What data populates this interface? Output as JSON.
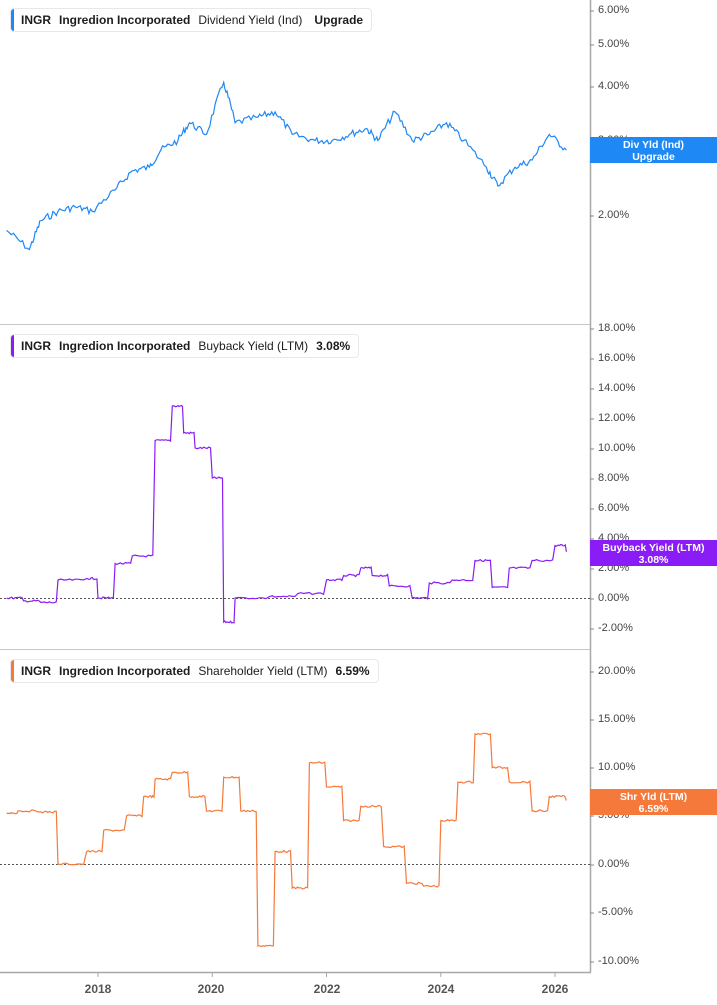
{
  "ticker": "INGR",
  "company": "Ingredion Incorporated",
  "panels": [
    {
      "metric": "Dividend Yield (Ind)",
      "value": "Upgrade",
      "color": "#1e88f5",
      "tag_line1": "Div Yld (Ind)",
      "tag_line2": "Upgrade",
      "ticks": [
        "6.00%",
        "5.00%",
        "4.00%",
        "3.00%",
        "2.00%"
      ]
    },
    {
      "metric": "Buyback Yield (LTM)",
      "value": "3.08%",
      "color": "#8a1cf5",
      "tag_line1": "Buyback Yield (LTM)",
      "tag_line2": "3.08%",
      "ticks": [
        "18.00%",
        "16.00%",
        "14.00%",
        "12.00%",
        "10.00%",
        "8.00%",
        "6.00%",
        "4.00%",
        "2.00%",
        "0.00%",
        "-2.00%"
      ]
    },
    {
      "metric": "Shareholder Yield (LTM)",
      "value": "6.59%",
      "color": "#f5793b",
      "tag_line1": "Shr Yld (LTM)",
      "tag_line2": "6.59%",
      "ticks": [
        "20.00%",
        "15.00%",
        "10.00%",
        "5.00%",
        "0.00%",
        "-5.00%",
        "-10.00%"
      ]
    }
  ],
  "x_axis": [
    "2018",
    "2020",
    "2022",
    "2024",
    "2026"
  ],
  "chart_data": [
    {
      "type": "line",
      "title": "INGR Ingredion Incorporated Dividend Yield (Ind)",
      "ylabel": "Dividend Yield (Ind)",
      "yscale": "log",
      "ylim": [
        1.5,
        6.3
      ],
      "y_ticks": [
        "2.00%",
        "3.00%",
        "4.00%",
        "5.00%",
        "6.00%"
      ],
      "x": [
        2016.4,
        2016.8,
        2017.0,
        2017.3,
        2017.6,
        2017.9,
        2018.3,
        2018.6,
        2018.9,
        2019.1,
        2019.4,
        2019.6,
        2019.9,
        2020.2,
        2020.4,
        2020.8,
        2021.1,
        2021.4,
        2021.8,
        2022.1,
        2022.4,
        2022.7,
        2022.9,
        2023.2,
        2023.5,
        2023.8,
        2024.1,
        2024.4,
        2024.8,
        2025.0,
        2025.3,
        2025.6,
        2025.9,
        2026.2
      ],
      "values": [
        1.85,
        1.67,
        1.95,
        2.05,
        2.1,
        2.05,
        2.3,
        2.55,
        2.6,
        2.85,
        3.0,
        3.3,
        3.1,
        4.1,
        3.3,
        3.4,
        3.5,
        3.1,
        3.0,
        3.0,
        3.1,
        3.2,
        3.0,
        3.5,
        3.0,
        3.1,
        3.3,
        3.0,
        2.6,
        2.35,
        2.6,
        2.7,
        3.1,
        2.85
      ]
    },
    {
      "type": "line",
      "title": "INGR Ingredion Incorporated Buyback Yield (LTM)",
      "ylabel": "Buyback Yield (LTM)",
      "ylim": [
        -2.5,
        18
      ],
      "y_ticks": [
        "-2.00%",
        "0.00%",
        "2.00%",
        "4.00%",
        "6.00%",
        "8.00%",
        "10.00%",
        "12.00%",
        "14.00%",
        "16.00%",
        "18.00%"
      ],
      "x": [
        2016.4,
        2016.7,
        2017.0,
        2017.3,
        2017.8,
        2018.0,
        2018.3,
        2018.6,
        2019.0,
        2019.3,
        2019.5,
        2019.7,
        2020.0,
        2020.2,
        2020.4,
        2021.0,
        2021.5,
        2022.0,
        2022.3,
        2022.6,
        2022.8,
        2023.1,
        2023.5,
        2023.8,
        2024.2,
        2024.6,
        2024.9,
        2025.2,
        2025.6,
        2026.0,
        2026.2
      ],
      "values": [
        0.0,
        -0.2,
        -0.3,
        1.2,
        1.3,
        0.0,
        2.3,
        2.8,
        10.5,
        12.8,
        11.0,
        10.0,
        8.0,
        -1.6,
        0.0,
        0.1,
        0.3,
        1.2,
        1.5,
        2.0,
        1.5,
        0.8,
        0.0,
        1.0,
        1.2,
        2.5,
        0.7,
        2.0,
        2.5,
        3.5,
        3.08
      ]
    },
    {
      "type": "line",
      "title": "INGR Ingredion Incorporated Shareholder Yield (LTM)",
      "ylabel": "Shareholder Yield (LTM)",
      "ylim": [
        -10.5,
        21
      ],
      "y_ticks": [
        "-10.00%",
        "-5.00%",
        "0.00%",
        "5.00%",
        "10.00%",
        "15.00%",
        "20.00%"
      ],
      "x": [
        2016.4,
        2016.6,
        2017.0,
        2017.3,
        2017.8,
        2018.1,
        2018.5,
        2018.8,
        2019.0,
        2019.3,
        2019.6,
        2019.9,
        2020.2,
        2020.5,
        2020.8,
        2021.1,
        2021.4,
        2021.7,
        2022.0,
        2022.3,
        2022.6,
        2023.0,
        2023.4,
        2023.7,
        2024.0,
        2024.3,
        2024.6,
        2024.9,
        2025.2,
        2025.6,
        2025.9,
        2026.2
      ],
      "values": [
        5.3,
        5.5,
        5.4,
        0.0,
        1.3,
        3.5,
        5.0,
        7.0,
        8.8,
        9.5,
        7.0,
        5.5,
        9.0,
        5.5,
        -8.5,
        1.3,
        -2.5,
        10.5,
        8.0,
        4.5,
        6.0,
        1.8,
        -2.0,
        -2.3,
        4.5,
        8.5,
        13.5,
        10.0,
        8.5,
        5.5,
        7.0,
        6.59
      ]
    }
  ]
}
